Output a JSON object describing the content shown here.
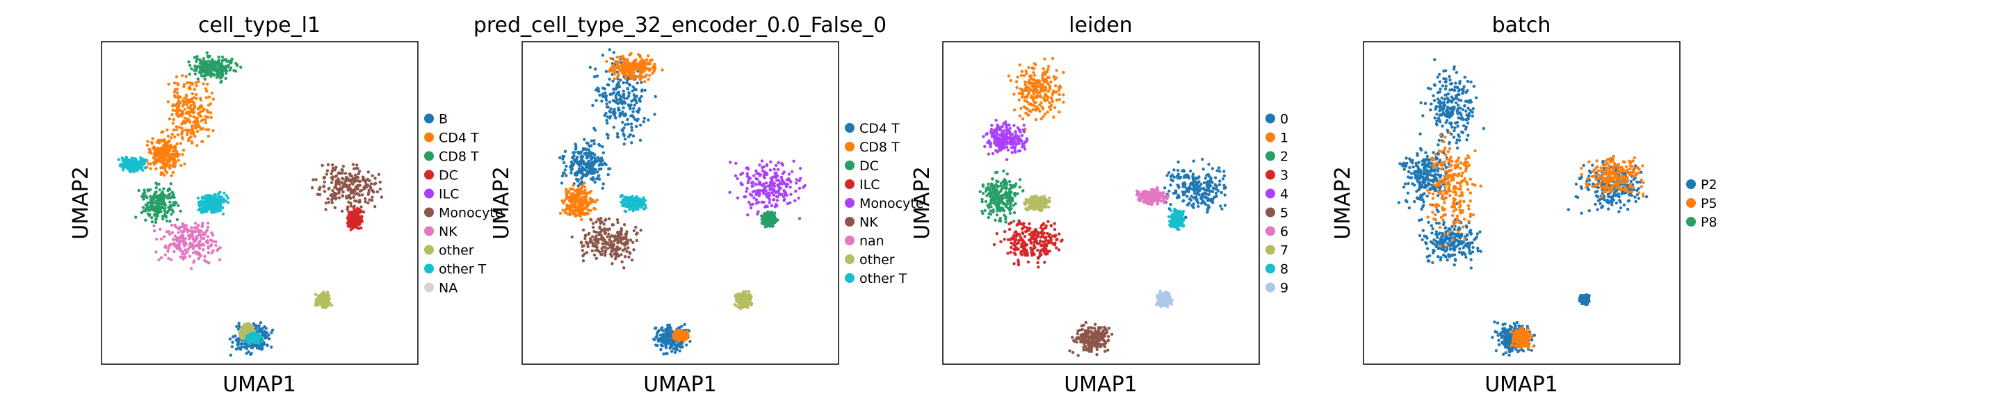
{
  "chart_data": [
    {
      "type": "scatter",
      "title": "cell_type_l1",
      "xlabel": "UMAP1",
      "ylabel": "UMAP2",
      "grid": false,
      "legend_position": "right",
      "legend": [
        {
          "label": "B",
          "color": "#1f77b4"
        },
        {
          "label": "CD4 T",
          "color": "#ff7f0e"
        },
        {
          "label": "CD8 T",
          "color": "#279e68"
        },
        {
          "label": "DC",
          "color": "#d62728"
        },
        {
          "label": "ILC",
          "color": "#aa40fc"
        },
        {
          "label": "Monocyte",
          "color": "#8c564b"
        },
        {
          "label": "NK",
          "color": "#e377c2"
        },
        {
          "label": "other",
          "color": "#b5bd61"
        },
        {
          "label": "other T",
          "color": "#17becf"
        },
        {
          "label": "NA",
          "color": "#d3d3d3"
        }
      ],
      "clusters": [
        {
          "name": "B",
          "color": "#1f77b4",
          "x": 0.475,
          "y": 0.08,
          "rx": 0.08,
          "ry": 0.06
        },
        {
          "name": "other",
          "color": "#b5bd61",
          "x": 0.46,
          "y": 0.1,
          "rx": 0.03,
          "ry": 0.03
        },
        {
          "name": "other T",
          "color": "#17becf",
          "x": 0.48,
          "y": 0.08,
          "rx": 0.03,
          "ry": 0.02
        },
        {
          "name": "CD8 T",
          "color": "#279e68",
          "x": 0.35,
          "y": 0.92,
          "rx": 0.1,
          "ry": 0.05
        },
        {
          "name": "CD4 T",
          "color": "#ff7f0e",
          "x": 0.28,
          "y": 0.78,
          "rx": 0.1,
          "ry": 0.15
        },
        {
          "name": "CD4 T",
          "color": "#ff7f0e",
          "x": 0.2,
          "y": 0.65,
          "rx": 0.08,
          "ry": 0.08
        },
        {
          "name": "CD8 T",
          "color": "#279e68",
          "x": 0.18,
          "y": 0.5,
          "rx": 0.08,
          "ry": 0.08
        },
        {
          "name": "NK",
          "color": "#e377c2",
          "x": 0.28,
          "y": 0.38,
          "rx": 0.13,
          "ry": 0.09
        },
        {
          "name": "other T",
          "color": "#17becf",
          "x": 0.35,
          "y": 0.5,
          "rx": 0.06,
          "ry": 0.04
        },
        {
          "name": "other T",
          "color": "#17becf",
          "x": 0.1,
          "y": 0.62,
          "rx": 0.05,
          "ry": 0.03
        },
        {
          "name": "Monocyte",
          "color": "#8c564b",
          "x": 0.78,
          "y": 0.55,
          "rx": 0.13,
          "ry": 0.1
        },
        {
          "name": "DC",
          "color": "#d62728",
          "x": 0.8,
          "y": 0.45,
          "rx": 0.03,
          "ry": 0.04
        },
        {
          "name": "other",
          "color": "#b5bd61",
          "x": 0.7,
          "y": 0.2,
          "rx": 0.03,
          "ry": 0.03
        }
      ]
    },
    {
      "type": "scatter",
      "title": "pred_cell_type_32_encoder_0.0_False_0",
      "xlabel": "UMAP1",
      "ylabel": "UMAP2",
      "grid": false,
      "legend_position": "right",
      "legend": [
        {
          "label": "CD4 T",
          "color": "#1f77b4"
        },
        {
          "label": "CD8 T",
          "color": "#ff7f0e"
        },
        {
          "label": "DC",
          "color": "#279e68"
        },
        {
          "label": "ILC",
          "color": "#d62728"
        },
        {
          "label": "Monocyte",
          "color": "#aa40fc"
        },
        {
          "label": "NK",
          "color": "#8c564b"
        },
        {
          "label": "nan",
          "color": "#e377c2"
        },
        {
          "label": "other",
          "color": "#b5bd61"
        },
        {
          "label": "other T",
          "color": "#17becf"
        }
      ],
      "clusters": [
        {
          "name": "CD4 T",
          "color": "#1f77b4",
          "x": 0.475,
          "y": 0.08,
          "rx": 0.08,
          "ry": 0.06
        },
        {
          "name": "CD8 T",
          "color": "#ff7f0e",
          "x": 0.5,
          "y": 0.09,
          "rx": 0.03,
          "ry": 0.02
        },
        {
          "name": "CD4 T",
          "color": "#1f77b4",
          "x": 0.32,
          "y": 0.82,
          "rx": 0.12,
          "ry": 0.18
        },
        {
          "name": "CD8 T",
          "color": "#ff7f0e",
          "x": 0.35,
          "y": 0.92,
          "rx": 0.1,
          "ry": 0.05
        },
        {
          "name": "CD4 T",
          "color": "#1f77b4",
          "x": 0.2,
          "y": 0.62,
          "rx": 0.1,
          "ry": 0.1
        },
        {
          "name": "CD8 T",
          "color": "#ff7f0e",
          "x": 0.18,
          "y": 0.5,
          "rx": 0.07,
          "ry": 0.07
        },
        {
          "name": "NK",
          "color": "#8c564b",
          "x": 0.28,
          "y": 0.38,
          "rx": 0.13,
          "ry": 0.09
        },
        {
          "name": "other T",
          "color": "#17becf",
          "x": 0.35,
          "y": 0.5,
          "rx": 0.05,
          "ry": 0.03
        },
        {
          "name": "Monocyte",
          "color": "#aa40fc",
          "x": 0.78,
          "y": 0.55,
          "rx": 0.14,
          "ry": 0.11
        },
        {
          "name": "DC",
          "color": "#279e68",
          "x": 0.78,
          "y": 0.45,
          "rx": 0.03,
          "ry": 0.03
        },
        {
          "name": "other",
          "color": "#b5bd61",
          "x": 0.7,
          "y": 0.2,
          "rx": 0.03,
          "ry": 0.03
        }
      ]
    },
    {
      "type": "scatter",
      "title": "leiden",
      "xlabel": "UMAP1",
      "ylabel": "UMAP2",
      "grid": false,
      "legend_position": "right",
      "legend": [
        {
          "label": "0",
          "color": "#1f77b4"
        },
        {
          "label": "1",
          "color": "#ff7f0e"
        },
        {
          "label": "2",
          "color": "#279e68"
        },
        {
          "label": "3",
          "color": "#d62728"
        },
        {
          "label": "4",
          "color": "#aa40fc"
        },
        {
          "label": "5",
          "color": "#8c564b"
        },
        {
          "label": "6",
          "color": "#e377c2"
        },
        {
          "label": "7",
          "color": "#b5bd61"
        },
        {
          "label": "8",
          "color": "#17becf"
        },
        {
          "label": "9",
          "color": "#aec7e8"
        }
      ],
      "clusters": [
        {
          "name": "5",
          "color": "#8c564b",
          "x": 0.475,
          "y": 0.08,
          "rx": 0.08,
          "ry": 0.06
        },
        {
          "name": "1",
          "color": "#ff7f0e",
          "x": 0.3,
          "y": 0.85,
          "rx": 0.11,
          "ry": 0.13
        },
        {
          "name": "4",
          "color": "#aa40fc",
          "x": 0.2,
          "y": 0.7,
          "rx": 0.09,
          "ry": 0.07
        },
        {
          "name": "2",
          "color": "#279e68",
          "x": 0.18,
          "y": 0.52,
          "rx": 0.09,
          "ry": 0.1
        },
        {
          "name": "3",
          "color": "#d62728",
          "x": 0.28,
          "y": 0.38,
          "rx": 0.13,
          "ry": 0.09
        },
        {
          "name": "7",
          "color": "#b5bd61",
          "x": 0.3,
          "y": 0.5,
          "rx": 0.05,
          "ry": 0.03
        },
        {
          "name": "0",
          "color": "#1f77b4",
          "x": 0.8,
          "y": 0.55,
          "rx": 0.14,
          "ry": 0.1
        },
        {
          "name": "6",
          "color": "#e377c2",
          "x": 0.66,
          "y": 0.52,
          "rx": 0.06,
          "ry": 0.03
        },
        {
          "name": "8",
          "color": "#17becf",
          "x": 0.74,
          "y": 0.45,
          "rx": 0.03,
          "ry": 0.04
        },
        {
          "name": "9",
          "color": "#aec7e8",
          "x": 0.7,
          "y": 0.2,
          "rx": 0.03,
          "ry": 0.03
        }
      ]
    },
    {
      "type": "scatter",
      "title": "batch",
      "xlabel": "UMAP1",
      "ylabel": "UMAP2",
      "grid": false,
      "legend_position": "right",
      "legend": [
        {
          "label": "P2",
          "color": "#1f77b4"
        },
        {
          "label": "P5",
          "color": "#ff7f0e"
        },
        {
          "label": "P8",
          "color": "#279e68"
        }
      ],
      "clusters": [
        {
          "name": "P2",
          "color": "#1f77b4",
          "x": 0.475,
          "y": 0.08,
          "rx": 0.08,
          "ry": 0.06
        },
        {
          "name": "P5",
          "color": "#ff7f0e",
          "x": 0.5,
          "y": 0.08,
          "rx": 0.04,
          "ry": 0.04
        },
        {
          "name": "P2",
          "color": "#1f77b4",
          "x": 0.28,
          "y": 0.8,
          "rx": 0.12,
          "ry": 0.16
        },
        {
          "name": "P2",
          "color": "#1f77b4",
          "x": 0.2,
          "y": 0.58,
          "rx": 0.1,
          "ry": 0.12
        },
        {
          "name": "P2",
          "color": "#1f77b4",
          "x": 0.28,
          "y": 0.38,
          "rx": 0.13,
          "ry": 0.09
        },
        {
          "name": "P5",
          "color": "#ff7f0e",
          "x": 0.28,
          "y": 0.55,
          "rx": 0.1,
          "ry": 0.2
        },
        {
          "name": "P2",
          "color": "#1f77b4",
          "x": 0.78,
          "y": 0.55,
          "rx": 0.14,
          "ry": 0.1
        },
        {
          "name": "P5",
          "color": "#ff7f0e",
          "x": 0.8,
          "y": 0.58,
          "rx": 0.12,
          "ry": 0.08
        },
        {
          "name": "P2",
          "color": "#1f77b4",
          "x": 0.7,
          "y": 0.2,
          "rx": 0.02,
          "ry": 0.02
        }
      ]
    }
  ]
}
